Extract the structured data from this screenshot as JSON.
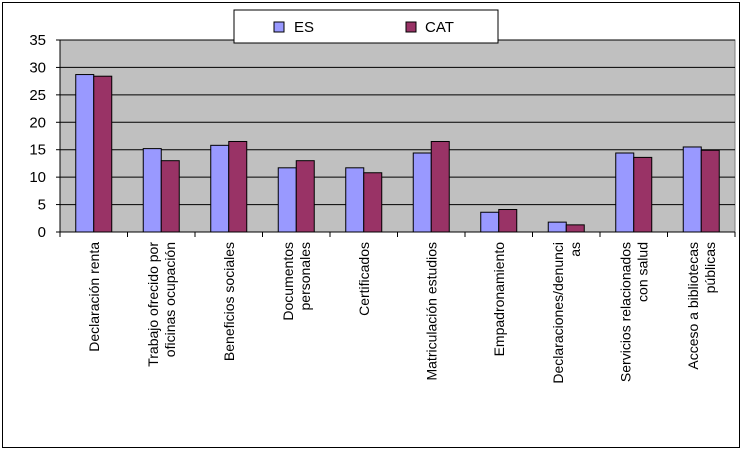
{
  "chart_data": {
    "type": "bar",
    "categories": [
      [
        "Declaración renta"
      ],
      [
        "Trabajo ofrecido por",
        "oficinas ocupación"
      ],
      [
        "Beneficios sociales"
      ],
      [
        "Documentos",
        "personales"
      ],
      [
        "Certificados"
      ],
      [
        "Matriculación estudios"
      ],
      [
        "Empadronamiento"
      ],
      [
        "Declaraciones/denunci",
        "as"
      ],
      [
        "Servicios relacionados",
        "con salud"
      ],
      [
        "Acceso a bibliotecas",
        "públicas"
      ]
    ],
    "series": [
      {
        "name": "ES",
        "color": "#9999ff",
        "values": [
          28.7,
          15.2,
          15.8,
          11.7,
          11.7,
          14.4,
          3.6,
          1.8,
          14.4,
          15.5
        ]
      },
      {
        "name": "CAT",
        "color": "#993366",
        "values": [
          28.4,
          13.0,
          16.5,
          13.0,
          10.8,
          16.5,
          4.1,
          1.3,
          13.6,
          14.9
        ]
      }
    ],
    "ylim": [
      0,
      35
    ],
    "yticks": [
      0,
      5,
      10,
      15,
      20,
      25,
      30,
      35
    ],
    "grid": true,
    "plot_background": "#c0c0c0",
    "legend_position": "top-center",
    "title": "",
    "xlabel": "",
    "ylabel": ""
  }
}
